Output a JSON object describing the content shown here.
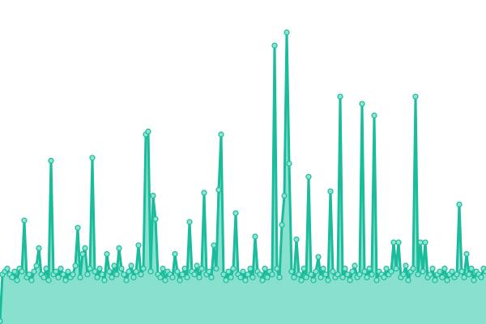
{
  "chart_data": {
    "type": "area",
    "title": "",
    "xlabel": "",
    "ylabel": "",
    "ylim": [
      0,
      100
    ],
    "grid": false,
    "axes_visible": false,
    "markers": true,
    "colors": {
      "line": "#1abc9c",
      "fill": "#88e0cf",
      "marker_fill": "#8fe3d2"
    },
    "values": [
      1,
      17,
      18,
      19,
      17,
      16,
      18,
      15,
      19,
      18,
      35.5,
      16,
      17,
      15,
      18,
      20,
      26,
      17,
      16,
      19,
      15,
      56,
      17,
      18,
      16,
      19,
      17,
      15,
      18,
      16,
      17,
      20,
      33,
      16,
      24,
      26,
      17,
      19,
      57,
      18,
      16,
      19,
      17,
      15,
      24,
      18,
      16,
      20,
      17,
      26,
      19,
      17,
      15,
      18,
      20,
      16,
      18,
      27,
      17,
      19,
      65,
      66,
      18,
      44,
      36,
      17,
      16,
      19,
      15,
      18,
      17,
      16,
      24,
      18,
      15,
      17,
      19,
      16,
      35,
      18,
      17,
      20,
      16,
      19,
      45,
      17,
      18,
      16,
      27,
      19,
      46,
      65,
      17,
      15,
      18,
      16,
      19,
      38,
      17,
      16,
      18,
      15,
      17,
      19,
      16,
      30,
      18,
      17,
      15,
      19,
      16,
      18,
      17,
      95.5,
      19,
      16,
      34,
      44,
      100,
      55,
      18,
      16,
      29,
      17,
      15,
      19,
      16,
      50.5,
      17,
      15,
      18,
      23,
      16,
      19,
      17,
      15,
      45.5,
      18,
      16,
      17,
      78,
      16,
      19,
      17,
      15,
      18,
      20,
      16,
      17,
      75.5,
      18,
      16,
      19,
      17,
      71.5,
      15,
      18,
      17,
      16,
      19,
      17,
      18,
      28,
      19,
      28,
      16,
      17,
      20,
      15,
      18,
      19,
      78,
      17,
      28,
      18,
      28,
      16,
      17,
      19,
      15,
      17,
      18,
      16,
      19,
      15,
      17,
      18,
      16,
      17,
      41,
      18,
      16,
      24,
      17,
      19,
      15,
      18,
      17,
      16,
      19,
      18
    ]
  }
}
